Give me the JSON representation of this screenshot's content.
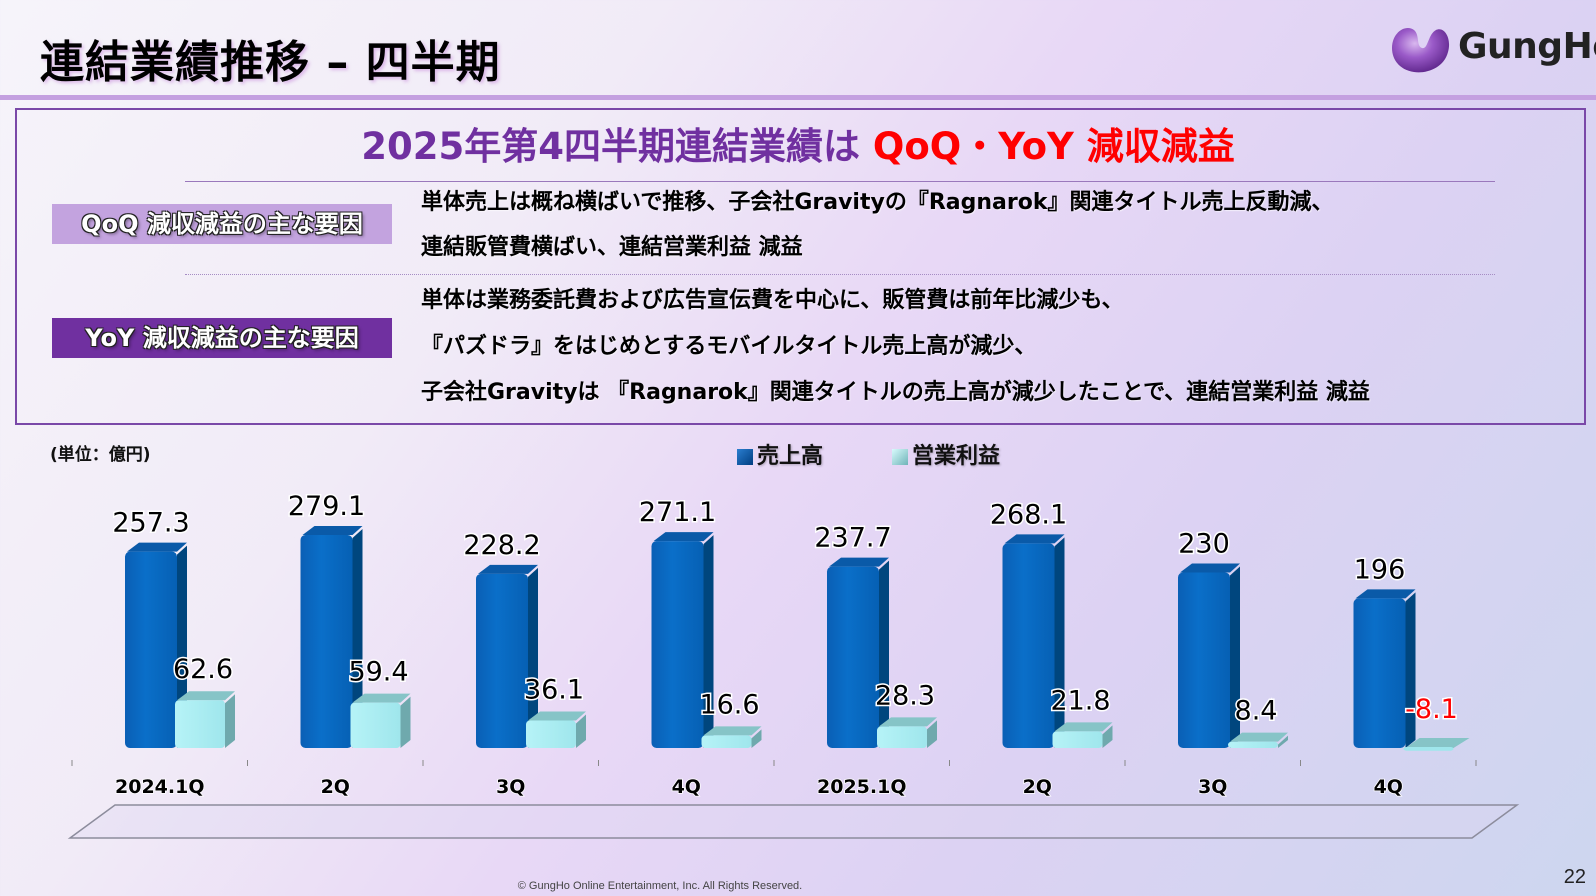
{
  "header": {
    "title": "連結業績推移 – 四半期",
    "logo_text": "GungHo"
  },
  "summary": {
    "headline_prefix": "2025年第4四半期連結業績は",
    "headline_highlight": "QoQ・YoY 減収減益",
    "qoq": {
      "label": "QoQ 減収減益の主な要因",
      "lines": [
        "単体売上は概ね横ばいで推移、子会社Gravityの『Ragnarok』関連タイトル売上反動減、",
        "連結販管費横ばい、連結営業利益 減益"
      ]
    },
    "yoy": {
      "label": "YoY 減収減益の主な要因",
      "lines": [
        "単体は業務委託費および広告宣伝費を中心に、販管費は前年比減少も、",
        "『パズドラ』をはじめとするモバイルタイトル売上高が減少、",
        "子会社Gravityは 『Ragnarok』関連タイトルの売上高が減少したことで、連結営業利益 減益"
      ]
    }
  },
  "chart_data": {
    "type": "bar",
    "unit_label": "(単位：億円)",
    "categories": [
      "2024.1Q",
      "2Q",
      "3Q",
      "4Q",
      "2025.1Q",
      "2Q",
      "3Q",
      "4Q"
    ],
    "series": [
      {
        "name": "売上高",
        "color": "#0066bb",
        "values": [
          257.3,
          279.1,
          228.2,
          271.1,
          237.7,
          268.1,
          230,
          196
        ],
        "labels": [
          "257.3",
          "279.1",
          "228.2",
          "271.1",
          "237.7",
          "268.1",
          "230",
          "196"
        ]
      },
      {
        "name": "営業利益",
        "color": "#a8eef2",
        "values": [
          62.6,
          59.4,
          36.1,
          16.6,
          28.3,
          21.8,
          8.4,
          -8.1
        ],
        "labels": [
          "62.6",
          "59.4",
          "36.1",
          "16.6",
          "28.3",
          "21.8",
          "8.4",
          "-8.1"
        ]
      }
    ],
    "negative_label_color": "#ff0000",
    "ylim": [
      0,
      300
    ],
    "legend": "top-center",
    "grid": false
  },
  "footer": {
    "copyright": "© GungHo Online Entertainment, Inc. All Rights Reserved.",
    "page_number": "22"
  }
}
